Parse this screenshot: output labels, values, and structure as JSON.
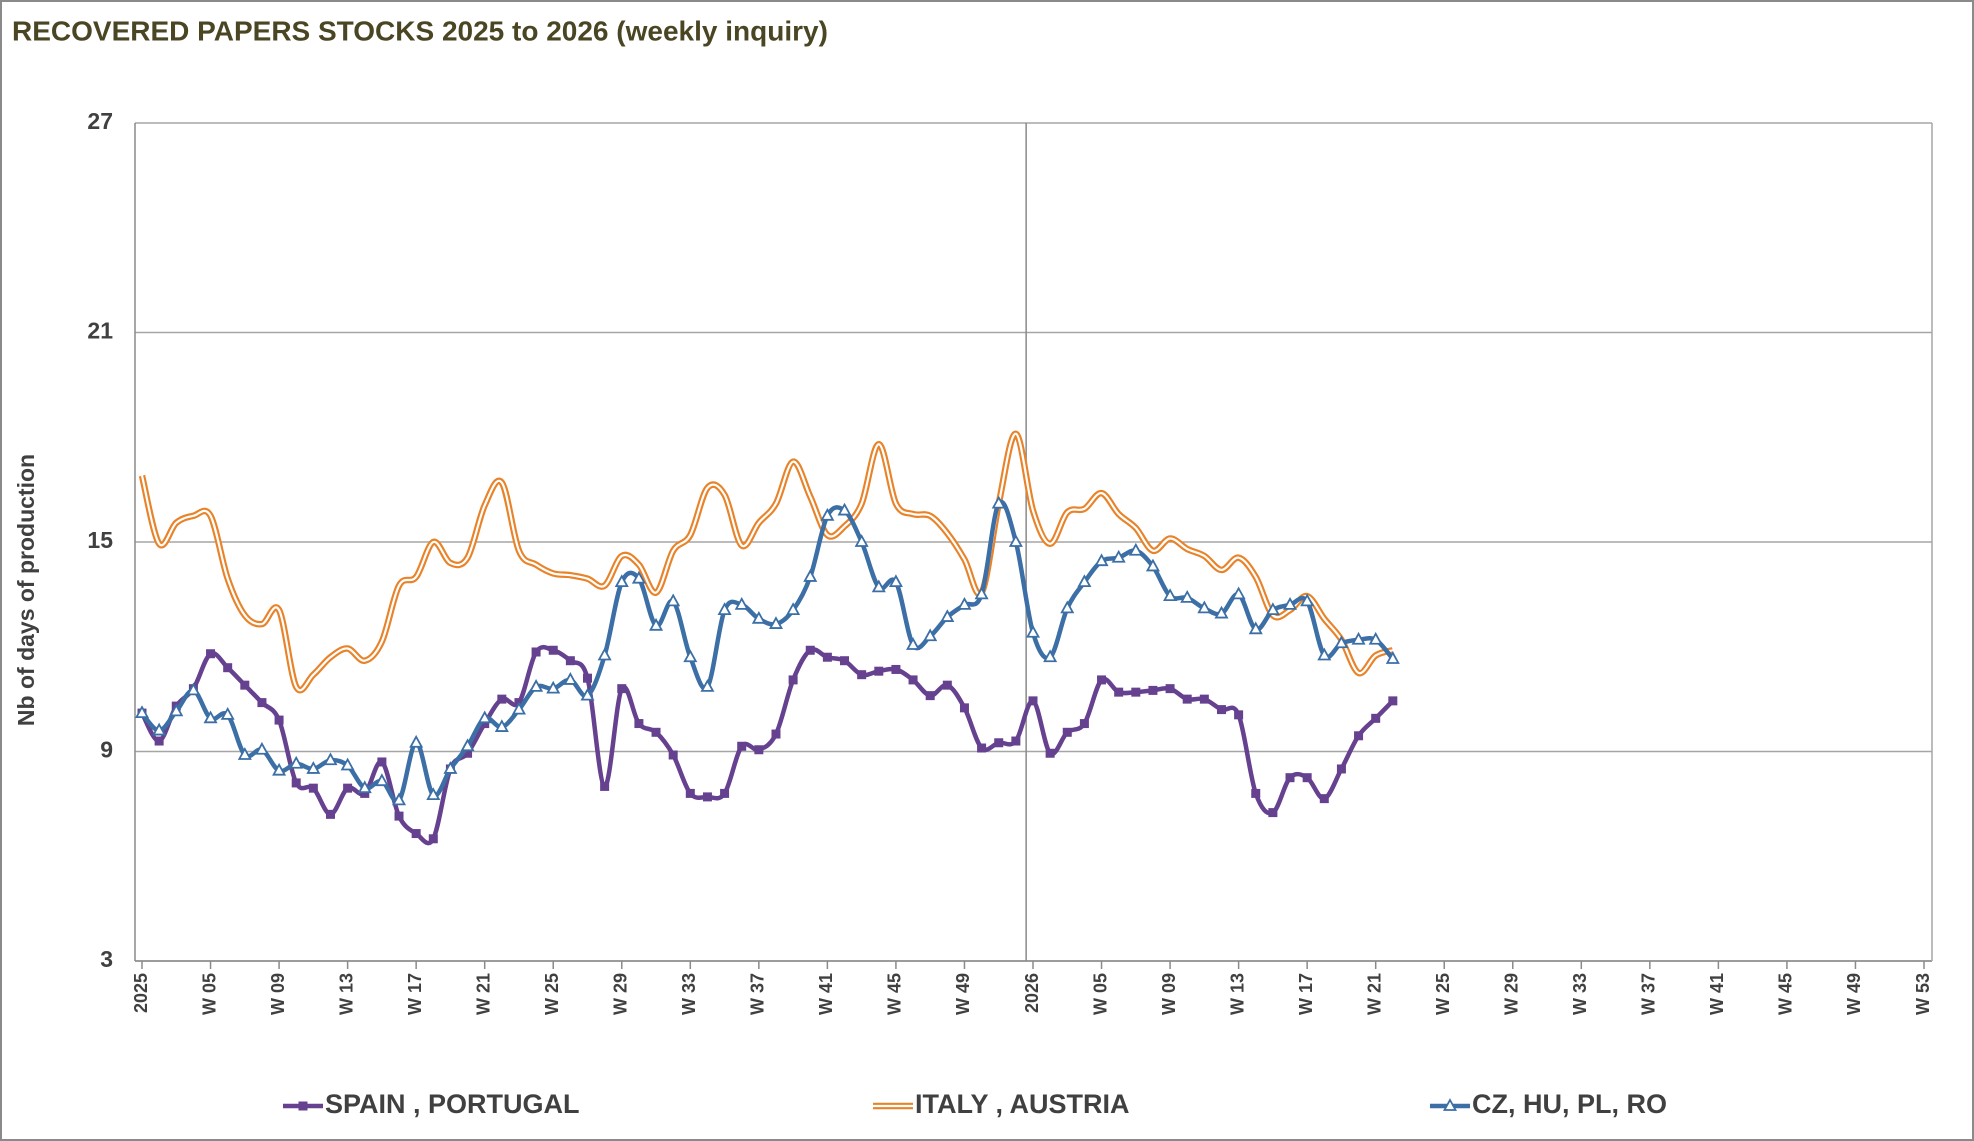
{
  "chart_data": {
    "type": "line",
    "title": "RECOVERED  PAPERS  STOCKS 2025 to 2026 (weekly inquiry)",
    "y_label": "Nb of days of production",
    "categories": [
      "2025",
      null,
      null,
      null,
      "W 05",
      null,
      null,
      null,
      "W 09",
      null,
      null,
      null,
      "W 13",
      null,
      null,
      null,
      "W 17",
      null,
      null,
      null,
      "W 21",
      null,
      null,
      null,
      "W 25",
      null,
      null,
      null,
      "W 29",
      null,
      null,
      null,
      "W 33",
      null,
      null,
      null,
      "W 37",
      null,
      null,
      null,
      "W 41",
      null,
      null,
      null,
      "W 45",
      null,
      null,
      null,
      "W 49",
      null,
      null,
      null,
      "2026",
      null,
      null,
      null,
      "W 05",
      null,
      null,
      null,
      "W 09",
      null,
      null,
      null,
      "W 13",
      null,
      null,
      null,
      "W 17",
      null,
      null,
      null,
      "W 21",
      null,
      null,
      null,
      "W 25",
      null,
      null,
      null,
      "W 29",
      null,
      null,
      null,
      "W 33",
      null,
      null,
      null,
      "W 37",
      null,
      null,
      null,
      "W 41",
      null,
      null,
      null,
      "W 45",
      null,
      null,
      null,
      "W 49",
      null,
      null,
      null,
      "W 53"
    ],
    "ylim": [
      3,
      27
    ],
    "yticks": [
      3,
      9,
      15,
      21,
      27
    ],
    "grid": true,
    "legend": "bottom",
    "series": [
      {
        "name": "SPAIN , PORTUGAL",
        "color": "#65418f",
        "marker": "square",
        "values": [
          10.1,
          9.3,
          10.3,
          10.8,
          11.8,
          11.4,
          10.9,
          10.4,
          9.9,
          8.1,
          7.95,
          7.2,
          7.95,
          7.8,
          8.7,
          7.15,
          6.65,
          6.5,
          8.5,
          8.95,
          9.8,
          10.5,
          10.4,
          11.85,
          11.9,
          11.6,
          11.1,
          8.0,
          10.8,
          9.8,
          9.55,
          8.9,
          7.8,
          7.7,
          7.8,
          9.15,
          9.05,
          9.5,
          11.05,
          11.9,
          11.7,
          11.6,
          11.2,
          11.3,
          11.35,
          11.05,
          10.6,
          10.9,
          10.25,
          9.1,
          9.25,
          9.3,
          10.45,
          8.95,
          9.55,
          9.8,
          11.05,
          10.7,
          10.7,
          10.75,
          10.8,
          10.5,
          10.5,
          10.2,
          10.05,
          7.8,
          7.25,
          8.25,
          8.25,
          7.65,
          8.5,
          9.45,
          9.95,
          10.45,
          null,
          null,
          null,
          null,
          null,
          null,
          null,
          null,
          null,
          null,
          null,
          null,
          null,
          null,
          null,
          null,
          null,
          null,
          null,
          null,
          null,
          null,
          null,
          null,
          null,
          null,
          null,
          null,
          null,
          null,
          null
        ]
      },
      {
        "name": "ITALY , AUSTRIA",
        "color": "#e8832a",
        "marker": "none",
        "values": [
          16.9,
          14.95,
          15.55,
          15.75,
          15.75,
          13.95,
          12.9,
          12.65,
          13.05,
          10.85,
          11.2,
          11.7,
          11.95,
          11.6,
          12.15,
          13.75,
          14.0,
          15.0,
          14.4,
          14.55,
          16.05,
          16.7,
          14.75,
          14.35,
          14.1,
          14.05,
          13.95,
          13.75,
          14.6,
          14.35,
          13.55,
          14.75,
          15.2,
          16.55,
          16.35,
          14.9,
          15.55,
          16.1,
          17.3,
          16.3,
          15.2,
          15.45,
          16.1,
          17.8,
          16.1,
          15.8,
          15.75,
          15.25,
          14.5,
          13.55,
          16.1,
          18.1,
          15.9,
          14.95,
          15.85,
          15.95,
          16.4,
          15.8,
          15.4,
          14.75,
          15.1,
          14.8,
          14.6,
          14.2,
          14.55,
          14.0,
          12.9,
          13.05,
          13.45,
          12.8,
          12.2,
          11.25,
          11.75,
          11.9,
          null,
          null,
          null,
          null,
          null,
          null,
          null,
          null,
          null,
          null,
          null,
          null,
          null,
          null,
          null,
          null,
          null,
          null,
          null,
          null,
          null,
          null,
          null,
          null,
          null,
          null,
          null,
          null,
          null,
          null,
          null
        ]
      },
      {
        "name": "CZ, HU, PL, RO",
        "color": "#3b6fa5",
        "marker": "triangle",
        "values": [
          10.1,
          9.6,
          10.15,
          10.75,
          9.95,
          10.05,
          8.9,
          9.05,
          8.45,
          8.65,
          8.5,
          8.75,
          8.6,
          7.95,
          8.15,
          7.6,
          9.25,
          7.75,
          8.5,
          9.15,
          9.95,
          9.7,
          10.2,
          10.85,
          10.8,
          11.05,
          10.6,
          11.75,
          13.85,
          13.95,
          12.6,
          13.3,
          11.7,
          10.85,
          13.05,
          13.2,
          12.8,
          12.65,
          13.05,
          14.0,
          15.75,
          15.9,
          15.0,
          13.7,
          13.85,
          12.05,
          12.3,
          12.85,
          13.2,
          13.5,
          16.1,
          15.0,
          12.4,
          11.7,
          13.1,
          13.85,
          14.45,
          14.55,
          14.75,
          14.3,
          13.45,
          13.4,
          13.1,
          12.95,
          13.5,
          12.5,
          13.05,
          13.2,
          13.3,
          11.75,
          12.1,
          12.2,
          12.2,
          11.65,
          null,
          null,
          null,
          null,
          null,
          null,
          null,
          null,
          null,
          null,
          null,
          null,
          null,
          null,
          null,
          null,
          null,
          null,
          null,
          null,
          null,
          null,
          null,
          null,
          null,
          null,
          null,
          null,
          null,
          null,
          null
        ]
      }
    ]
  }
}
